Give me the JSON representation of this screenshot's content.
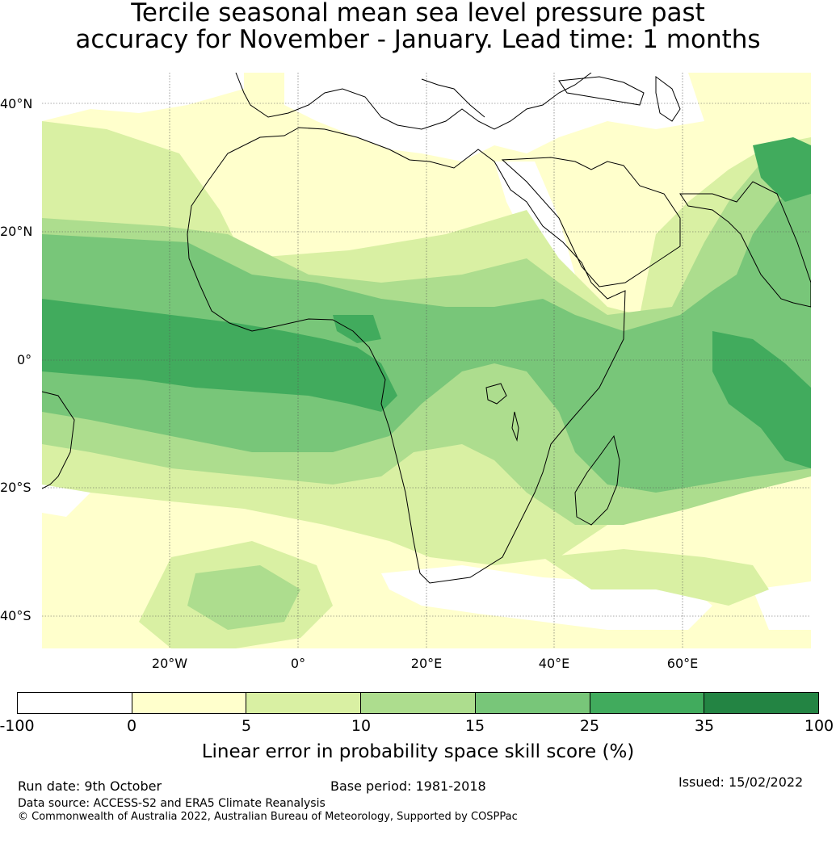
{
  "title": {
    "line1": "Tercile seasonal mean sea level pressure past",
    "line2": "accuracy for November - January. Lead time: 1 months"
  },
  "map": {
    "lat_labels": [
      "40°N",
      "20°N",
      "0°",
      "20°S",
      "40°S"
    ],
    "lon_labels": [
      "20°W",
      "0°",
      "20°E",
      "40°E",
      "60°E"
    ],
    "extent": {
      "lon_min": -40,
      "lon_max": 80,
      "lat_min": -45,
      "lat_max": 45
    },
    "gridlines": true
  },
  "colorbar": {
    "ticks": [
      "-100",
      "0",
      "5",
      "10",
      "15",
      "25",
      "35",
      "100"
    ],
    "colors": [
      "#ffffff",
      "#ffffcc",
      "#d9f0a3",
      "#addd8e",
      "#78c679",
      "#41ab5d",
      "#238443"
    ],
    "label": "Linear error in probability space skill score (%)"
  },
  "footer": {
    "run_date": "Run date: 9th October",
    "base_period": "Base period: 1981-2018",
    "issued": "Issued: 15/02/2022",
    "data_source": "Data source: ACCESS-S2 and ERA5 Climate Reanalysis",
    "copyright": "© Commonwealth of Australia 2022, Australian Bureau of Meteorology, Supported by COSPPac"
  }
}
